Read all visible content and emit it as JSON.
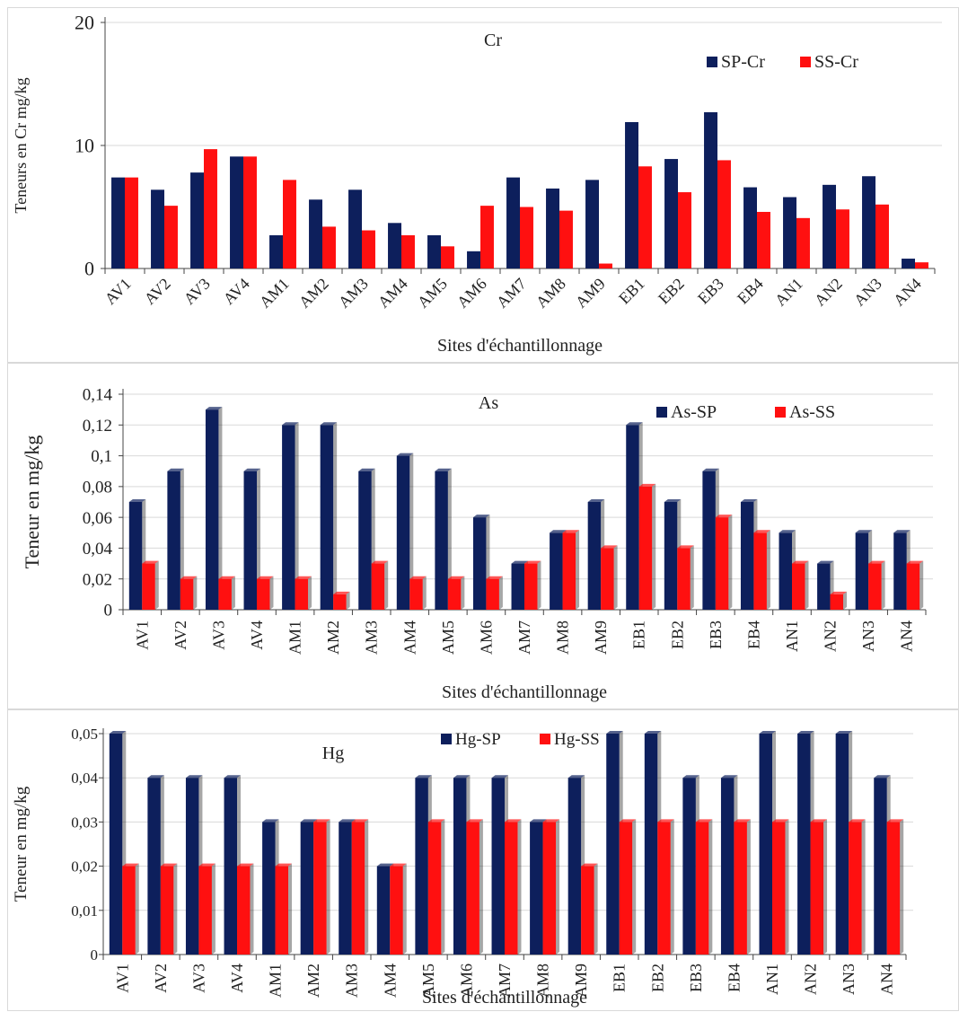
{
  "colors": {
    "sp": "#0d1f5c",
    "ss": "#ff1010"
  },
  "chart_data": [
    {
      "type": "bar",
      "title": "Cr",
      "ylabel": "Teneurs en Cr mg/kg",
      "xlabel": "Sites d'échantillonnage",
      "ylim": [
        0,
        20
      ],
      "yticks": [
        "0",
        "10",
        "20"
      ],
      "grid": true,
      "legend_position": "top-right",
      "categories": [
        "AV1",
        "AV2",
        "AV3",
        "AV4",
        "AM1",
        "AM2",
        "AM3",
        "AM4",
        "AM5",
        "AM6",
        "AM7",
        "AM8",
        "AM9",
        "EB1",
        "EB2",
        "EB3",
        "EB4",
        "AN1",
        "AN2",
        "AN3",
        "AN4"
      ],
      "series": [
        {
          "name": "SP-Cr",
          "values": [
            7.4,
            6.4,
            7.8,
            9.1,
            2.7,
            5.6,
            6.4,
            3.7,
            2.7,
            1.4,
            7.4,
            6.5,
            7.2,
            11.9,
            8.9,
            12.7,
            6.6,
            5.8,
            6.8,
            7.5,
            0.8
          ]
        },
        {
          "name": "SS-Cr",
          "values": [
            7.4,
            5.1,
            9.7,
            9.1,
            7.2,
            3.4,
            3.1,
            2.7,
            1.8,
            5.1,
            5.0,
            4.7,
            0.4,
            8.3,
            6.2,
            8.8,
            4.6,
            4.1,
            4.8,
            5.2,
            0.5
          ]
        }
      ]
    },
    {
      "type": "bar",
      "title": "As",
      "ylabel": "Teneur en mg/kg",
      "xlabel": "Sites d'échantillonnage",
      "ylim": [
        0,
        0.14
      ],
      "yticks": [
        "0",
        "0,02",
        "0,04",
        "0,06",
        "0,08",
        "0,1",
        "0,12",
        "0,14"
      ],
      "grid": true,
      "legend_position": "top-right",
      "categories": [
        "AV1",
        "AV2",
        "AV3",
        "AV4",
        "AM1",
        "AM2",
        "AM3",
        "AM4",
        "AM5",
        "AM6",
        "AM7",
        "AM8",
        "AM9",
        "EB1",
        "EB2",
        "EB3",
        "EB4",
        "AN1",
        "AN2",
        "AN3",
        "AN4"
      ],
      "series": [
        {
          "name": "As-SP",
          "values": [
            0.07,
            0.09,
            0.13,
            0.09,
            0.12,
            0.12,
            0.09,
            0.1,
            0.09,
            0.06,
            0.03,
            0.05,
            0.07,
            0.12,
            0.07,
            0.09,
            0.07,
            0.05,
            0.03,
            0.05,
            0.05
          ]
        },
        {
          "name": "As-SS",
          "values": [
            0.03,
            0.02,
            0.02,
            0.02,
            0.02,
            0.01,
            0.03,
            0.02,
            0.02,
            0.02,
            0.03,
            0.05,
            0.04,
            0.08,
            0.04,
            0.06,
            0.05,
            0.03,
            0.01,
            0.03,
            0.03
          ]
        }
      ]
    },
    {
      "type": "bar",
      "title": "Hg",
      "ylabel": "Teneur en mg/kg",
      "xlabel": "Sites d'échantillonnage",
      "ylim": [
        0,
        0.05
      ],
      "yticks": [
        "0",
        "0,01",
        "0,02",
        "0,03",
        "0,04",
        "0,05"
      ],
      "grid": true,
      "legend_position": "top-center",
      "categories": [
        "AV1",
        "AV2",
        "AV3",
        "AV4",
        "AM1",
        "AM2",
        "AM3",
        "AM4",
        "AM5",
        "AM6",
        "AM7",
        "AM8",
        "AM9",
        "EB1",
        "EB2",
        "EB3",
        "EB4",
        "AN1",
        "AN2",
        "AN3",
        "AN4"
      ],
      "series": [
        {
          "name": "Hg-SP",
          "values": [
            0.05,
            0.04,
            0.04,
            0.04,
            0.03,
            0.03,
            0.03,
            0.02,
            0.04,
            0.04,
            0.04,
            0.03,
            0.04,
            0.05,
            0.05,
            0.04,
            0.04,
            0.05,
            0.05,
            0.05,
            0.04
          ]
        },
        {
          "name": "Hg-SS",
          "values": [
            0.02,
            0.02,
            0.02,
            0.02,
            0.02,
            0.03,
            0.03,
            0.02,
            0.03,
            0.03,
            0.03,
            0.03,
            0.02,
            0.03,
            0.03,
            0.03,
            0.03,
            0.03,
            0.03,
            0.03,
            0.03
          ]
        }
      ]
    }
  ]
}
